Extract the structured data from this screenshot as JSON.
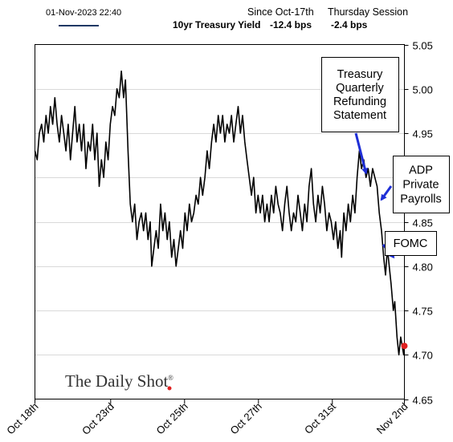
{
  "header": {
    "timestamp": "01-Nov-2023 22:40",
    "series_label": "10yr Treasury Yield",
    "col1_title": "Since Oct-17th",
    "col1_value": "-12.4 bps",
    "col2_title": "Thursday Session",
    "col2_value": "-2.4 bps",
    "legend_color": "#1f3864"
  },
  "watermark": {
    "text": "The Daily Shot",
    "mark": "®",
    "dot_color": "#e02020"
  },
  "chart_data": {
    "type": "line",
    "ylim": [
      4.65,
      5.05
    ],
    "yticks": [
      4.65,
      4.7,
      4.75,
      4.8,
      4.85,
      4.9,
      4.95,
      5.0,
      5.05
    ],
    "ytick_labels": [
      "4.65",
      "4.70",
      "4.75",
      "4.80",
      "4.85",
      "4.90",
      "4.95",
      "5.00",
      "5.05"
    ],
    "xlim": [
      0,
      100
    ],
    "xticks": [
      0,
      20.5,
      40.5,
      60.5,
      80.5,
      100
    ],
    "xtick_labels": [
      "Oct 18th",
      "Oct 23rd",
      "Oct 25th",
      "Oct 27th",
      "Oct 31st",
      "Nov 2nd"
    ],
    "grid": true,
    "series": [
      {
        "color": "#000000",
        "points": [
          [
            0,
            4.93
          ],
          [
            0.6,
            4.92
          ],
          [
            1.2,
            4.95
          ],
          [
            1.8,
            4.96
          ],
          [
            2.4,
            4.94
          ],
          [
            3.0,
            4.97
          ],
          [
            3.6,
            4.95
          ],
          [
            4.2,
            4.98
          ],
          [
            4.8,
            4.96
          ],
          [
            5.4,
            4.99
          ],
          [
            6.0,
            4.96
          ],
          [
            6.6,
            4.94
          ],
          [
            7.2,
            4.97
          ],
          [
            7.8,
            4.95
          ],
          [
            8.4,
            4.93
          ],
          [
            9.0,
            4.96
          ],
          [
            9.6,
            4.92
          ],
          [
            10.2,
            4.95
          ],
          [
            10.8,
            4.98
          ],
          [
            11.4,
            4.94
          ],
          [
            12.0,
            4.96
          ],
          [
            12.6,
            4.93
          ],
          [
            13.2,
            4.96
          ],
          [
            13.8,
            4.91
          ],
          [
            14.4,
            4.94
          ],
          [
            15.0,
            4.93
          ],
          [
            15.6,
            4.96
          ],
          [
            16.2,
            4.92
          ],
          [
            16.8,
            4.95
          ],
          [
            17.4,
            4.89
          ],
          [
            18.0,
            4.92
          ],
          [
            18.6,
            4.9
          ],
          [
            19.2,
            4.94
          ],
          [
            19.8,
            4.92
          ],
          [
            20.4,
            4.96
          ],
          [
            21.0,
            4.98
          ],
          [
            21.6,
            4.97
          ],
          [
            22.2,
            5.0
          ],
          [
            22.8,
            4.99
          ],
          [
            23.4,
            5.02
          ],
          [
            24.0,
            4.99
          ],
          [
            24.5,
            5.01
          ],
          [
            25.2,
            4.93
          ],
          [
            25.8,
            4.87
          ],
          [
            26.4,
            4.85
          ],
          [
            27.0,
            4.87
          ],
          [
            27.6,
            4.83
          ],
          [
            28.2,
            4.85
          ],
          [
            28.8,
            4.86
          ],
          [
            29.4,
            4.84
          ],
          [
            30.0,
            4.86
          ],
          [
            30.6,
            4.83
          ],
          [
            31.2,
            4.85
          ],
          [
            31.6,
            4.8
          ],
          [
            32.2,
            4.82
          ],
          [
            32.8,
            4.84
          ],
          [
            33.4,
            4.82
          ],
          [
            34.0,
            4.87
          ],
          [
            34.6,
            4.84
          ],
          [
            35.2,
            4.86
          ],
          [
            35.8,
            4.83
          ],
          [
            36.4,
            4.85
          ],
          [
            37.0,
            4.81
          ],
          [
            37.6,
            4.83
          ],
          [
            38.2,
            4.8
          ],
          [
            38.8,
            4.82
          ],
          [
            39.4,
            4.84
          ],
          [
            40.0,
            4.82
          ],
          [
            40.6,
            4.86
          ],
          [
            41.2,
            4.84
          ],
          [
            41.8,
            4.87
          ],
          [
            42.4,
            4.85
          ],
          [
            43.0,
            4.86
          ],
          [
            43.6,
            4.88
          ],
          [
            44.2,
            4.87
          ],
          [
            44.8,
            4.9
          ],
          [
            45.4,
            4.88
          ],
          [
            46.0,
            4.9
          ],
          [
            46.6,
            4.93
          ],
          [
            47.2,
            4.91
          ],
          [
            47.8,
            4.94
          ],
          [
            48.4,
            4.96
          ],
          [
            49.0,
            4.94
          ],
          [
            49.6,
            4.97
          ],
          [
            50.2,
            4.95
          ],
          [
            50.8,
            4.97
          ],
          [
            51.4,
            4.94
          ],
          [
            52.0,
            4.96
          ],
          [
            52.6,
            4.95
          ],
          [
            53.2,
            4.97
          ],
          [
            53.8,
            4.94
          ],
          [
            54.4,
            4.96
          ],
          [
            55.0,
            4.98
          ],
          [
            55.6,
            4.95
          ],
          [
            56.2,
            4.97
          ],
          [
            56.8,
            4.94
          ],
          [
            57.4,
            4.92
          ],
          [
            58.0,
            4.9
          ],
          [
            58.6,
            4.88
          ],
          [
            59.2,
            4.9
          ],
          [
            59.8,
            4.86
          ],
          [
            60.4,
            4.88
          ],
          [
            61.0,
            4.86
          ],
          [
            61.6,
            4.88
          ],
          [
            62.2,
            4.85
          ],
          [
            62.8,
            4.87
          ],
          [
            63.4,
            4.85
          ],
          [
            64.0,
            4.88
          ],
          [
            64.6,
            4.86
          ],
          [
            65.2,
            4.89
          ],
          [
            65.8,
            4.87
          ],
          [
            66.4,
            4.86
          ],
          [
            67.0,
            4.84
          ],
          [
            67.6,
            4.87
          ],
          [
            68.2,
            4.89
          ],
          [
            68.8,
            4.86
          ],
          [
            69.4,
            4.84
          ],
          [
            70.0,
            4.86
          ],
          [
            70.6,
            4.85
          ],
          [
            71.2,
            4.88
          ],
          [
            71.8,
            4.86
          ],
          [
            72.4,
            4.84
          ],
          [
            73.0,
            4.87
          ],
          [
            73.6,
            4.85
          ],
          [
            74.2,
            4.89
          ],
          [
            74.8,
            4.91
          ],
          [
            75.4,
            4.87
          ],
          [
            76.0,
            4.85
          ],
          [
            76.6,
            4.88
          ],
          [
            77.2,
            4.86
          ],
          [
            77.8,
            4.89
          ],
          [
            78.4,
            4.87
          ],
          [
            79.0,
            4.84
          ],
          [
            79.6,
            4.86
          ],
          [
            80.2,
            4.85
          ],
          [
            80.8,
            4.83
          ],
          [
            81.4,
            4.85
          ],
          [
            82.0,
            4.82
          ],
          [
            82.6,
            4.84
          ],
          [
            83.0,
            4.81
          ],
          [
            83.6,
            4.86
          ],
          [
            84.2,
            4.84
          ],
          [
            84.8,
            4.87
          ],
          [
            85.4,
            4.85
          ],
          [
            86.0,
            4.88
          ],
          [
            86.6,
            4.86
          ],
          [
            87.2,
            4.9
          ],
          [
            87.8,
            4.93
          ],
          [
            88.4,
            4.91
          ],
          [
            89.0,
            4.92
          ],
          [
            89.6,
            4.9
          ],
          [
            90.2,
            4.91
          ],
          [
            90.8,
            4.89
          ],
          [
            91.4,
            4.91
          ],
          [
            92.0,
            4.9
          ],
          [
            92.6,
            4.89
          ],
          [
            93.2,
            4.86
          ],
          [
            93.8,
            4.84
          ],
          [
            94.4,
            4.81
          ],
          [
            94.9,
            4.79
          ],
          [
            95.4,
            4.82
          ],
          [
            95.9,
            4.8
          ],
          [
            96.4,
            4.78
          ],
          [
            97.0,
            4.75
          ],
          [
            97.4,
            4.76
          ],
          [
            98.0,
            4.72
          ],
          [
            98.5,
            4.7
          ],
          [
            99.0,
            4.72
          ],
          [
            99.4,
            4.71
          ],
          [
            99.8,
            4.7
          ],
          [
            100.0,
            4.71
          ]
        ]
      }
    ],
    "annotations": [
      {
        "lines": [
          "Treasury",
          "Quarterly",
          "Refunding",
          "Statement"
        ],
        "arrow_to": [
          89.6,
          4.905
        ]
      },
      {
        "lines": [
          "ADP",
          "Private",
          "Payrolls"
        ],
        "arrow_to": [
          92.9,
          4.875
        ]
      },
      {
        "lines": [
          "FOMC"
        ],
        "arrow_to": [
          96.2,
          4.81
        ]
      }
    ],
    "last_point": {
      "x": 100,
      "y": 4.71,
      "color": "#e02020"
    }
  }
}
